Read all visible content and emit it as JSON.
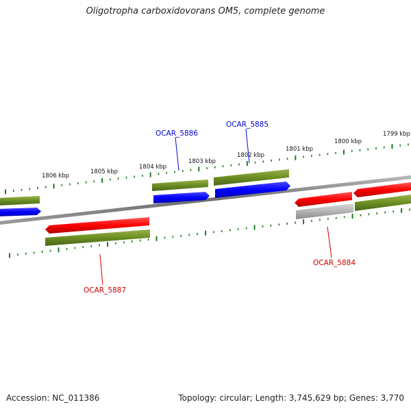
{
  "title": "Oligotropha carboxidovorans OM5, complete genome",
  "footer": {
    "accession": "Accession: NC_011386",
    "summary": "Topology: circular; Length: 3,745,629 bp; Genes: 3,770"
  },
  "colors": {
    "green": "#6b8e23",
    "blue": "#0000ff",
    "red": "#ff0000",
    "gray": "#b0b0b0",
    "tick": "#1e7a1e",
    "backbone": "#7a7a7a",
    "label_blue": "#0000cc",
    "label_red": "#cc0000"
  },
  "kbp_labels": [
    "1806 kbp",
    "1805 kbp",
    "1804 kbp",
    "1803 kbp",
    "1802 kbp",
    "1801 kbp",
    "1800 kbp",
    "1799 kbp"
  ],
  "genes": [
    {
      "name": "OCAR_5886",
      "color": "label_blue"
    },
    {
      "name": "OCAR_5885",
      "color": "label_blue"
    },
    {
      "name": "OCAR_5887",
      "color": "label_red"
    },
    {
      "name": "OCAR_5884",
      "color": "label_red"
    }
  ]
}
